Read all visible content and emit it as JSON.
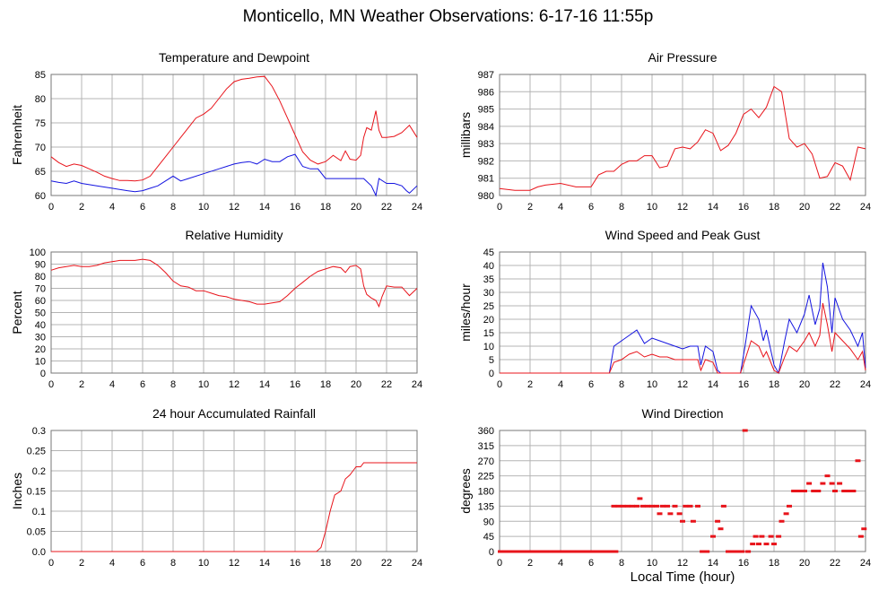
{
  "page_title": "Monticello, MN Weather Observations: 6-17-16 11:55p",
  "x_axis_label": "Local Time (hour)",
  "colors": {
    "red": "#e8141b",
    "blue": "#1414e0",
    "grid": "#b4b4b4",
    "frame": "#777777"
  },
  "chart_data": [
    {
      "type": "line",
      "title": "Temperature and Dewpoint",
      "ylabel": "Fahrenheit",
      "xlabel": "",
      "xlim": [
        0,
        24
      ],
      "ylim": [
        60,
        85
      ],
      "xticks": [
        0,
        2,
        4,
        6,
        8,
        10,
        12,
        14,
        16,
        18,
        20,
        22,
        24
      ],
      "yticks": [
        60,
        65,
        70,
        75,
        80,
        85
      ],
      "series": [
        {
          "color": "red",
          "x": [
            0,
            0.5,
            1,
            1.5,
            2,
            2.5,
            3,
            3.5,
            4,
            4.5,
            5,
            5.5,
            6,
            6.5,
            7,
            7.5,
            8,
            8.5,
            9,
            9.5,
            10,
            10.5,
            11,
            11.5,
            12,
            12.5,
            13,
            13.5,
            14,
            14.5,
            15,
            15.5,
            16,
            16.5,
            17,
            17.5,
            18,
            18.5,
            19,
            19.3,
            19.6,
            20,
            20.3,
            20.5,
            20.7,
            21,
            21.3,
            21.5,
            21.7,
            22,
            22.5,
            23,
            23.5,
            24
          ],
          "y": [
            68,
            66.8,
            66,
            66.5,
            66.2,
            65.5,
            64.8,
            64,
            63.5,
            63.1,
            63.1,
            63,
            63.2,
            64,
            66,
            68,
            70,
            72,
            74,
            76,
            76.8,
            78,
            80,
            82,
            83.5,
            84,
            84.2,
            84.5,
            84.6,
            82.5,
            79.5,
            76,
            72.5,
            69,
            67.3,
            66.5,
            67,
            68.3,
            67.2,
            69.2,
            67.5,
            67.3,
            68.3,
            72,
            74,
            73.5,
            77.5,
            73.5,
            72,
            72,
            72.2,
            73,
            74.5,
            72
          ]
        },
        {
          "color": "blue",
          "x": [
            0,
            0.5,
            1,
            1.5,
            2,
            3,
            4,
            5,
            5.5,
            6,
            6.5,
            7,
            7.5,
            8,
            8.5,
            9,
            10,
            11,
            12,
            12.5,
            13,
            13.5,
            14,
            14.5,
            15,
            15.5,
            16,
            16.5,
            17,
            17.5,
            18,
            19,
            20,
            20.5,
            21,
            21.3,
            21.5,
            22,
            22.5,
            23,
            23.3,
            23.5,
            24
          ],
          "y": [
            63,
            62.7,
            62.5,
            63,
            62.5,
            62,
            61.5,
            61,
            60.8,
            61,
            61.5,
            62,
            63,
            64,
            63,
            63.5,
            64.5,
            65.5,
            66.5,
            66.8,
            67,
            66.5,
            67.5,
            67,
            67,
            68,
            68.5,
            66,
            65.5,
            65.5,
            63.5,
            63.5,
            63.5,
            63.5,
            62,
            60,
            63.5,
            62.5,
            62.5,
            62,
            61,
            60.5,
            62
          ]
        }
      ]
    },
    {
      "type": "line",
      "title": "Air Pressure",
      "ylabel": "millibars",
      "xlabel": "",
      "xlim": [
        0,
        24
      ],
      "ylim": [
        980,
        987
      ],
      "xticks": [
        0,
        2,
        4,
        6,
        8,
        10,
        12,
        14,
        16,
        18,
        20,
        22,
        24
      ],
      "yticks": [
        980,
        981,
        982,
        983,
        984,
        985,
        986,
        987
      ],
      "series": [
        {
          "color": "red",
          "x": [
            0,
            1,
            2,
            2.5,
            3,
            4,
            5,
            6,
            6.5,
            7,
            7.5,
            8,
            8.5,
            9,
            9.5,
            10,
            10.5,
            11,
            11.5,
            12,
            12.5,
            13,
            13.5,
            14,
            14.5,
            15,
            15.5,
            16,
            16.5,
            17,
            17.5,
            18,
            18.5,
            19,
            19.5,
            20,
            20.5,
            21,
            21.5,
            22,
            22.5,
            23,
            23.5,
            24
          ],
          "y": [
            980.4,
            980.3,
            980.3,
            980.5,
            980.6,
            980.7,
            980.5,
            980.5,
            981.2,
            981.4,
            981.4,
            981.8,
            982,
            982,
            982.3,
            982.3,
            981.6,
            981.7,
            982.7,
            982.8,
            982.7,
            983.1,
            983.8,
            983.6,
            982.6,
            982.9,
            983.6,
            984.7,
            985,
            984.5,
            985.1,
            986.3,
            986,
            983.3,
            982.8,
            983,
            982.4,
            981,
            981.1,
            981.9,
            981.7,
            980.9,
            982.8,
            982.7
          ]
        }
      ]
    },
    {
      "type": "line",
      "title": "Relative Humidity",
      "ylabel": "Percent",
      "xlabel": "",
      "xlim": [
        0,
        24
      ],
      "ylim": [
        0,
        100
      ],
      "xticks": [
        0,
        2,
        4,
        6,
        8,
        10,
        12,
        14,
        16,
        18,
        20,
        22,
        24
      ],
      "yticks": [
        0,
        10,
        20,
        30,
        40,
        50,
        60,
        70,
        80,
        90,
        100
      ],
      "series": [
        {
          "color": "red",
          "x": [
            0,
            0.5,
            1,
            1.5,
            2,
            2.5,
            3,
            3.5,
            4,
            4.5,
            5,
            5.5,
            6,
            6.5,
            7,
            7.5,
            8,
            8.5,
            9,
            9.5,
            10,
            10.5,
            11,
            11.5,
            12,
            12.5,
            13,
            13.5,
            14,
            14.5,
            15,
            15.5,
            16,
            16.5,
            17,
            17.5,
            18,
            18.5,
            19,
            19.3,
            19.6,
            20,
            20.3,
            20.5,
            20.7,
            21,
            21.3,
            21.5,
            21.7,
            22,
            22.5,
            23,
            23.5,
            24
          ],
          "y": [
            85,
            87,
            88,
            89,
            88,
            88,
            89,
            91,
            92,
            93,
            93,
            93,
            94,
            93,
            89,
            83,
            76,
            72,
            71,
            68,
            68,
            66,
            64,
            63,
            61,
            60,
            59,
            57,
            57,
            58,
            59,
            64,
            70,
            75,
            80,
            84,
            86,
            88,
            87,
            83,
            88,
            89,
            86,
            72,
            65,
            62,
            60,
            55,
            63,
            72,
            71,
            71,
            64,
            70
          ]
        }
      ]
    },
    {
      "type": "line",
      "title": "Wind Speed and Peak Gust",
      "ylabel": "miles/hour",
      "xlabel": "",
      "xlim": [
        0,
        24
      ],
      "ylim": [
        0,
        45
      ],
      "xticks": [
        0,
        2,
        4,
        6,
        8,
        10,
        12,
        14,
        16,
        18,
        20,
        22,
        24
      ],
      "yticks": [
        0,
        5,
        10,
        15,
        20,
        25,
        30,
        35,
        40,
        45
      ],
      "series": [
        {
          "color": "blue",
          "x": [
            0,
            7.2,
            7.5,
            8,
            8.5,
            9,
            9.5,
            10,
            10.5,
            11,
            11.5,
            12,
            12.5,
            13,
            13.2,
            13.5,
            14,
            14.3,
            14.5,
            15,
            15.8,
            16.1,
            16.5,
            17,
            17.3,
            17.5,
            18,
            18.3,
            18.7,
            19,
            19.5,
            20,
            20.3,
            20.7,
            21,
            21.2,
            21.5,
            21.8,
            22,
            22.5,
            23,
            23.5,
            23.8,
            24
          ],
          "y": [
            0,
            0,
            10,
            12,
            14,
            16,
            11,
            13,
            12,
            11,
            10,
            9,
            10,
            10,
            3,
            10,
            8,
            1,
            0,
            0,
            0,
            10,
            25,
            20,
            12,
            16,
            3,
            0,
            12,
            20,
            15,
            22,
            29,
            18,
            24,
            41,
            32,
            15,
            28,
            20,
            16,
            10,
            15,
            2
          ]
        },
        {
          "color": "red",
          "x": [
            0,
            7.2,
            7.5,
            8,
            8.5,
            9,
            9.5,
            10,
            10.5,
            11,
            11.5,
            12,
            12.5,
            13,
            13.2,
            13.5,
            14,
            14.3,
            14.5,
            15,
            15.8,
            16.1,
            16.5,
            17,
            17.3,
            17.5,
            18,
            18.3,
            18.7,
            19,
            19.5,
            20,
            20.3,
            20.7,
            21,
            21.2,
            21.5,
            21.8,
            22,
            22.5,
            23,
            23.5,
            23.8,
            24
          ],
          "y": [
            0,
            0,
            4,
            5,
            7,
            8,
            6,
            7,
            6,
            6,
            5,
            5,
            5,
            5,
            1,
            5,
            4,
            0,
            0,
            0,
            0,
            5,
            12,
            10,
            6,
            8,
            1,
            0,
            6,
            10,
            8,
            12,
            15,
            10,
            14,
            26,
            18,
            8,
            15,
            12,
            9,
            5,
            8,
            1
          ]
        }
      ]
    },
    {
      "type": "line",
      "title": "24 hour Accumulated Rainfall",
      "ylabel": "Inches",
      "xlabel": "",
      "xlim": [
        0,
        24
      ],
      "ylim": [
        0,
        0.3
      ],
      "xticks": [
        0,
        2,
        4,
        6,
        8,
        10,
        12,
        14,
        16,
        18,
        20,
        22,
        24
      ],
      "yticks": [
        0.0,
        0.05,
        0.1,
        0.15,
        0.2,
        0.25,
        0.3
      ],
      "ytick_labels": [
        "0.0",
        "0.05",
        "0.1",
        "0.15",
        "0.2",
        "0.25",
        "0.3"
      ],
      "series": [
        {
          "color": "red",
          "x": [
            0,
            17.4,
            17.7,
            18,
            18.3,
            18.6,
            19,
            19.3,
            19.6,
            19.8,
            20,
            20.3,
            20.5,
            24
          ],
          "y": [
            0,
            0,
            0.01,
            0.05,
            0.1,
            0.14,
            0.15,
            0.18,
            0.19,
            0.2,
            0.21,
            0.21,
            0.22,
            0.22
          ]
        }
      ]
    },
    {
      "type": "scatter",
      "title": "Wind Direction",
      "ylabel": "degrees",
      "xlabel": "Local Time (hour)",
      "xlim": [
        0,
        24
      ],
      "ylim": [
        0,
        360
      ],
      "xticks": [
        0,
        2,
        4,
        6,
        8,
        10,
        12,
        14,
        16,
        18,
        20,
        22,
        24
      ],
      "yticks": [
        0,
        45,
        90,
        135,
        180,
        225,
        270,
        315,
        360
      ],
      "series": [
        {
          "color": "red",
          "x": [
            0,
            0.3,
            0.6,
            0.9,
            1.2,
            1.5,
            1.8,
            2.1,
            2.4,
            2.7,
            3,
            3.3,
            3.6,
            3.9,
            4.2,
            4.5,
            4.8,
            5.1,
            5.4,
            5.7,
            6,
            6.3,
            6.6,
            6.9,
            7.2,
            7.5,
            7.8,
            8.1,
            8.4,
            8.7,
            9,
            9.2,
            9.4,
            9.7,
            10,
            10.3,
            10.5,
            10.7,
            11,
            11.2,
            11.5,
            11.8,
            12,
            12.2,
            12.5,
            12.7,
            13,
            13.3,
            13.6,
            14,
            14.3,
            14.5,
            14.7,
            15,
            15.3,
            15.6,
            15.9,
            16.1,
            16.3,
            16.6,
            16.8,
            17,
            17.2,
            17.5,
            17.8,
            18,
            18.3,
            18.5,
            18.8,
            19,
            19.3,
            19.5,
            19.8,
            20,
            20.3,
            20.6,
            20.9,
            21.2,
            21.5,
            21.8,
            22,
            22.3,
            22.6,
            22.9,
            23.2,
            23.5,
            23.7,
            23.9
          ],
          "y": [
            0,
            0,
            0,
            0,
            0,
            0,
            0,
            0,
            0,
            0,
            0,
            0,
            0,
            0,
            0,
            0,
            0,
            0,
            0,
            0,
            0,
            0,
            0,
            0,
            0,
            135,
            135,
            135,
            135,
            135,
            135,
            157.5,
            135,
            135,
            135,
            135,
            112.5,
            135,
            135,
            112.5,
            135,
            112.5,
            90,
            135,
            135,
            90,
            135,
            0,
            0,
            45,
            90,
            67.5,
            135,
            0,
            0,
            0,
            0,
            360,
            0,
            22.5,
            45,
            22.5,
            45,
            22.5,
            45,
            22.5,
            45,
            90,
            112.5,
            135,
            180,
            180,
            180,
            180,
            202.5,
            180,
            180,
            202.5,
            225,
            202.5,
            180,
            202.5,
            180,
            180,
            180,
            270,
            45,
            67.5
          ]
        }
      ]
    }
  ]
}
